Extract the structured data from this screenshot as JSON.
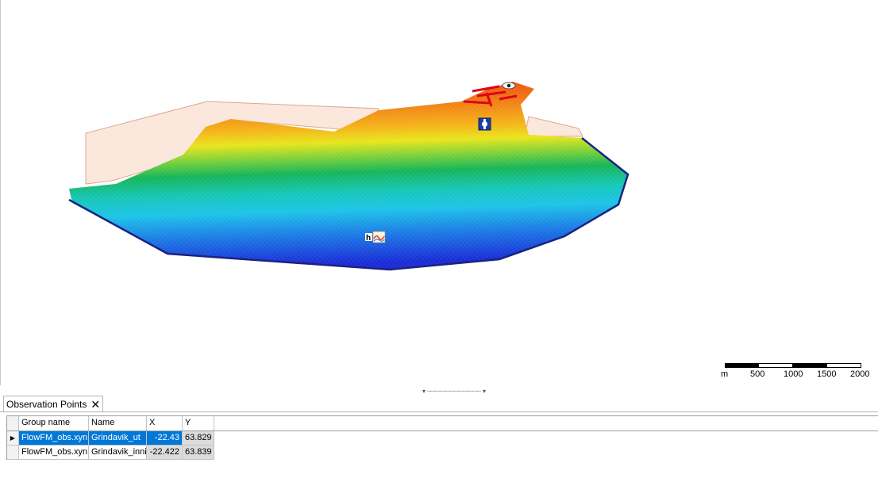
{
  "map": {
    "water_level_icon_label": "h",
    "scale_bar": {
      "unit": "m",
      "ticks": [
        "500",
        "1000",
        "1500",
        "2000"
      ]
    },
    "colors": {
      "deep": "#1a2cd6",
      "mid": "#19c8c0",
      "shallow": "#e8e81c",
      "land": "#ec3f10",
      "boundary": "#1a237e",
      "land_polygon": "#fbe7dc"
    }
  },
  "panel": {
    "tab_label": "Observation Points",
    "close_glyph": "✕",
    "splitter_glyph": "▾ ┈┈┈┈┈┈┈┈┈┈┈┈┈┈ ▾",
    "columns": [
      "Group name",
      "Name",
      "X",
      "Y"
    ],
    "rows": [
      {
        "group": "FlowFM_obs.xyn",
        "name": "Grindavik_ut",
        "x": "-22.43",
        "y": "63.829",
        "selected": true
      },
      {
        "group": "FlowFM_obs.xyn",
        "name": "Grindavik_inni",
        "x": "-22.422",
        "y": "63.839",
        "selected": false
      }
    ]
  }
}
